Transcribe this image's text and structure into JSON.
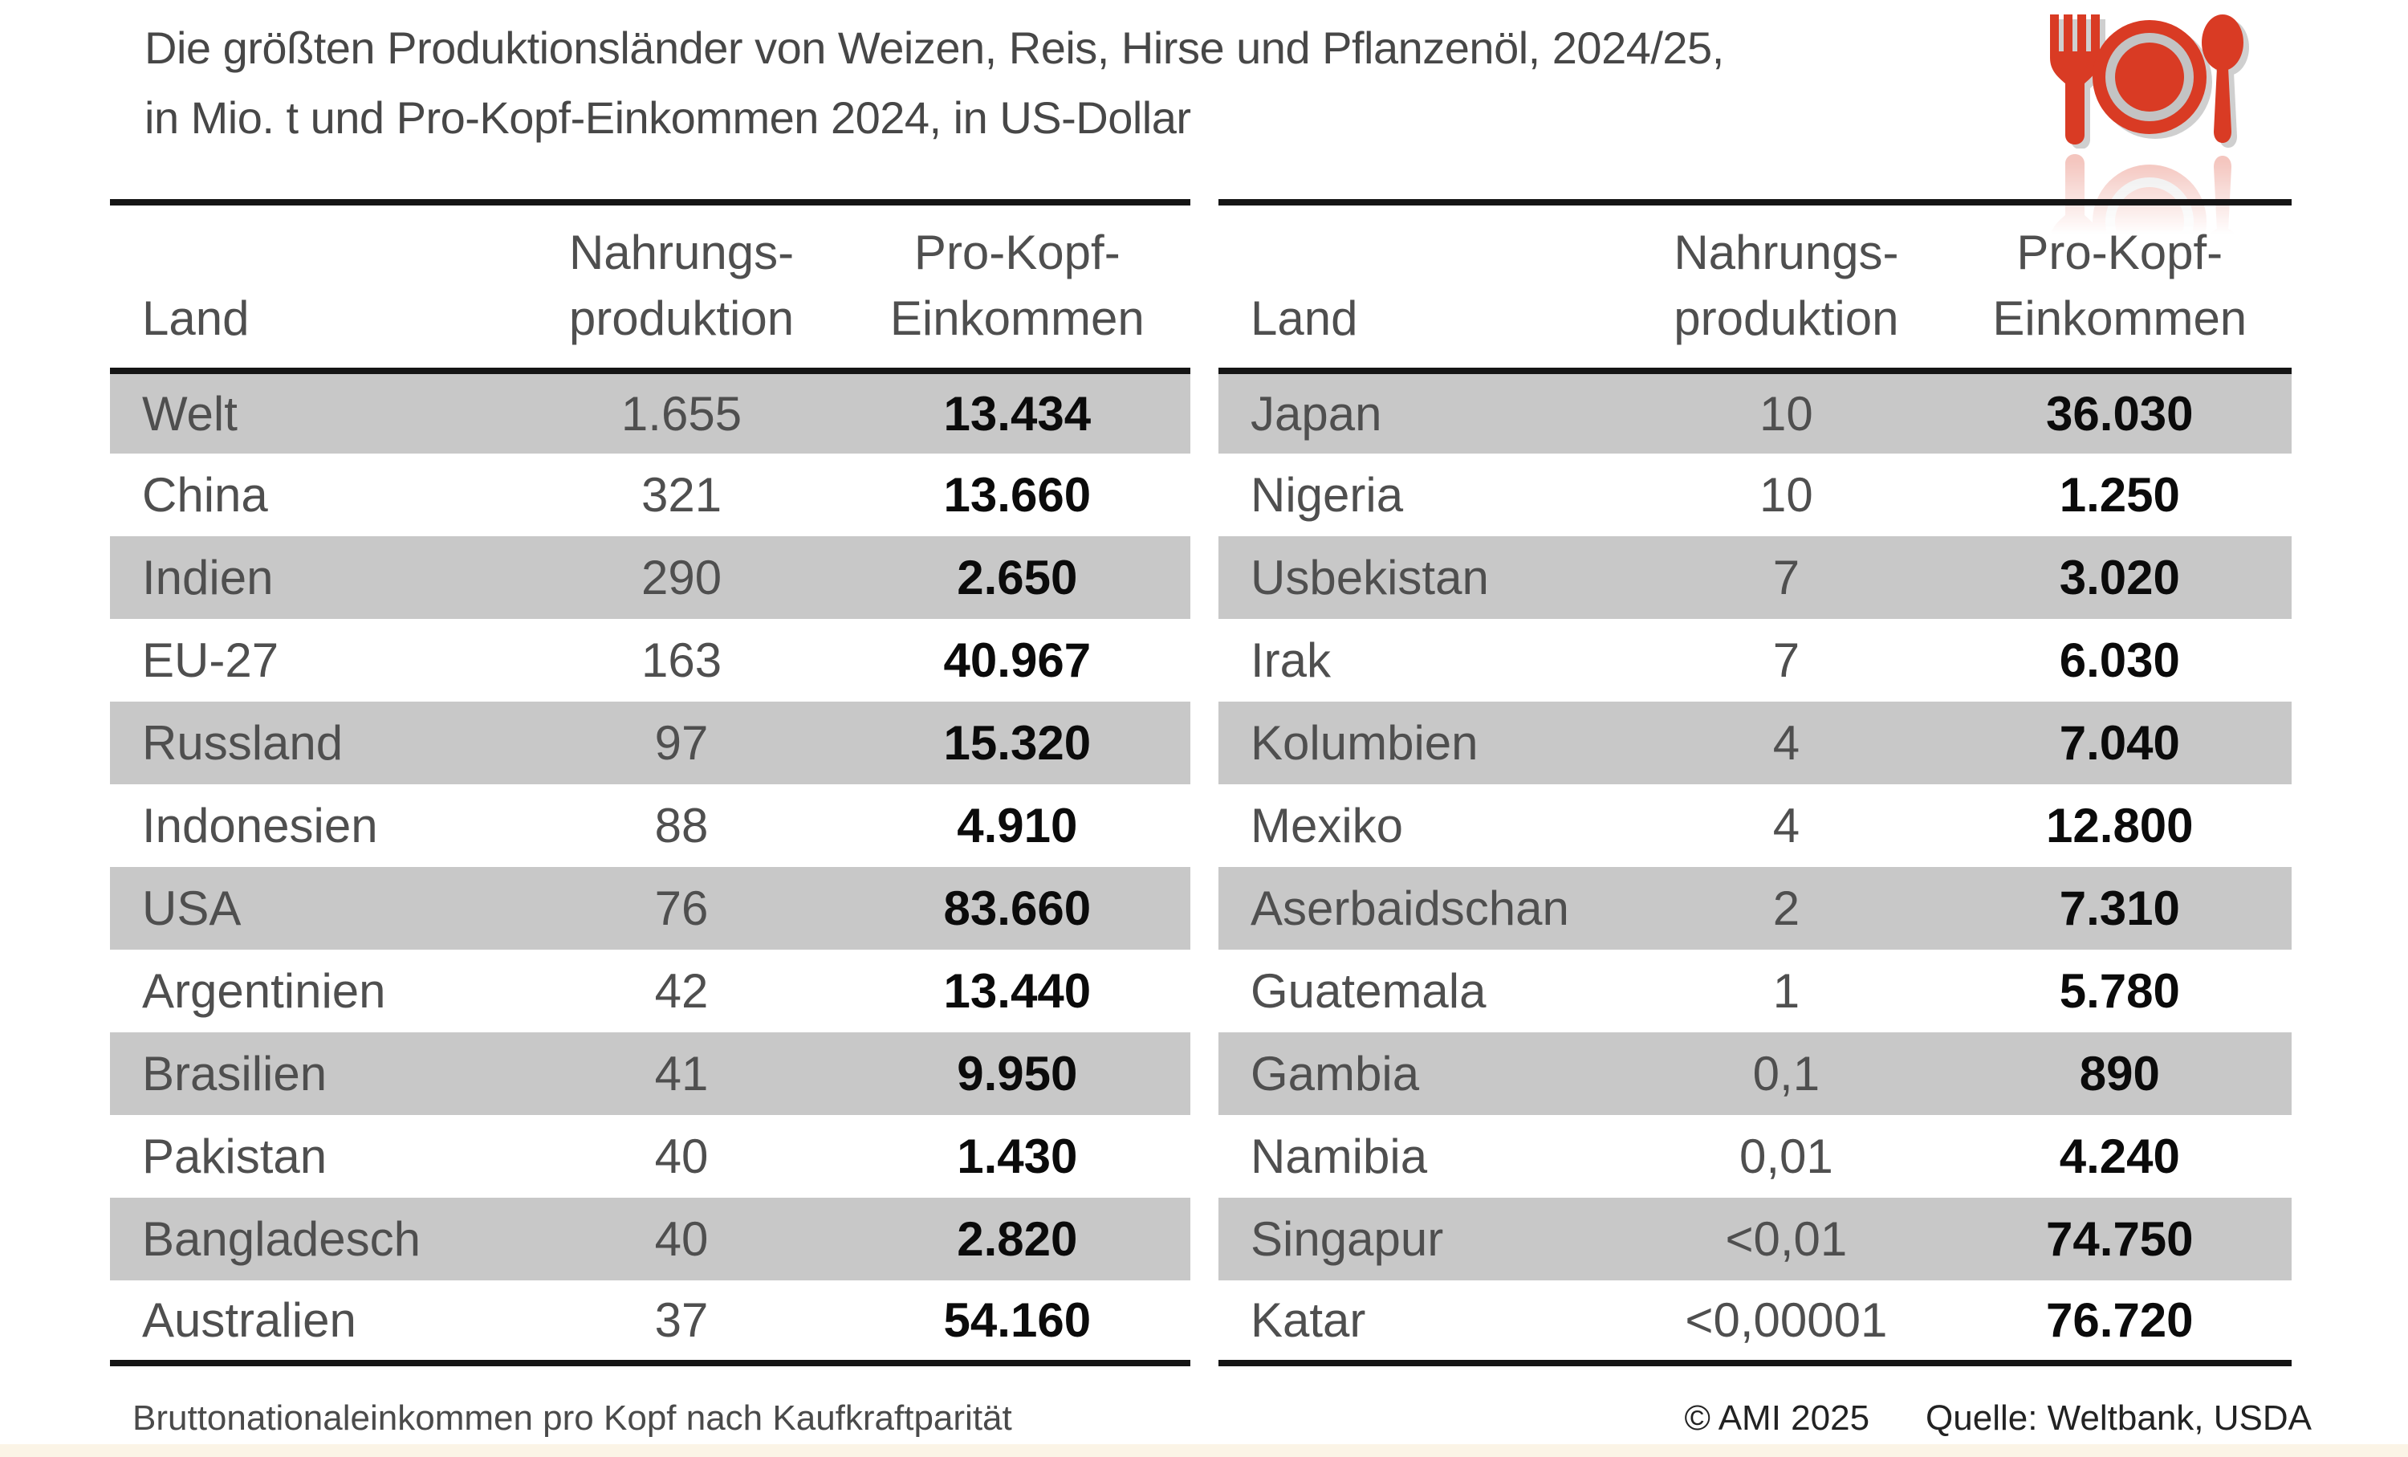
{
  "title": {
    "line1": "Die größten Produktionsländer von Weizen, Reis, Hirse und Pflanzenöl, 2024/25,",
    "line2": "in Mio. t und Pro-Kopf-Einkommen 2024, in US-Dollar"
  },
  "icon": {
    "name": "fork-plate-spoon",
    "color": "#d93b24",
    "shadow_color": "#a9a9a9",
    "ring_color": "#c3c3c3"
  },
  "chart_data": {
    "type": "table",
    "title": "Die größten Produktionsländer von Weizen, Reis, Hirse und Pflanzenöl, 2024/25, in Mio. t und Pro-Kopf-Einkommen 2024, in US-Dollar",
    "tables": [
      {
        "headers": {
          "country": "Land",
          "production": [
            "Nahrungs-",
            "produktion"
          ],
          "income": [
            "Pro-Kopf-",
            "Einkommen"
          ]
        },
        "rows": [
          {
            "country": "Welt",
            "production": "1.655",
            "income": "13.434"
          },
          {
            "country": "China",
            "production": "321",
            "income": "13.660"
          },
          {
            "country": "Indien",
            "production": "290",
            "income": "2.650"
          },
          {
            "country": "EU-27",
            "production": "163",
            "income": "40.967"
          },
          {
            "country": "Russland",
            "production": "97",
            "income": "15.320"
          },
          {
            "country": "Indonesien",
            "production": "88",
            "income": "4.910"
          },
          {
            "country": "USA",
            "production": "76",
            "income": "83.660"
          },
          {
            "country": "Argentinien",
            "production": "42",
            "income": "13.440"
          },
          {
            "country": "Brasilien",
            "production": "41",
            "income": "9.950"
          },
          {
            "country": "Pakistan",
            "production": "40",
            "income": "1.430"
          },
          {
            "country": "Bangladesch",
            "production": "40",
            "income": "2.820"
          },
          {
            "country": "Australien",
            "production": "37",
            "income": "54.160"
          }
        ]
      },
      {
        "headers": {
          "country": "Land",
          "production": [
            "Nahrungs-",
            "produktion"
          ],
          "income": [
            "Pro-Kopf-",
            "Einkommen"
          ]
        },
        "rows": [
          {
            "country": "Japan",
            "production": "10",
            "income": "36.030"
          },
          {
            "country": "Nigeria",
            "production": "10",
            "income": "1.250"
          },
          {
            "country": "Usbekistan",
            "production": "7",
            "income": "3.020"
          },
          {
            "country": "Irak",
            "production": "7",
            "income": "6.030"
          },
          {
            "country": "Kolumbien",
            "production": "4",
            "income": "7.040"
          },
          {
            "country": "Mexiko",
            "production": "4",
            "income": "12.800"
          },
          {
            "country": "Aserbaidschan",
            "production": "2",
            "income": "7.310"
          },
          {
            "country": "Guatemala",
            "production": "1",
            "income": "5.780"
          },
          {
            "country": "Gambia",
            "production": "0,1",
            "income": "890"
          },
          {
            "country": "Namibia",
            "production": "0,01",
            "income": "4.240"
          },
          {
            "country": "Singapur",
            "production": "<0,01",
            "income": "74.750"
          },
          {
            "country": "Katar",
            "production": "<0,00001",
            "income": "76.720"
          }
        ]
      }
    ],
    "layout": {
      "striped_rows": "odd rows gray #c8c8c8",
      "income_column_style": "bold black",
      "legend_position": "none"
    }
  },
  "footer": {
    "note": "Bruttonationaleinkommen pro Kopf nach Kaufkraftparität",
    "copyright": "© AMI 2025",
    "source": "Quelle: Weltbank, USDA"
  },
  "colors": {
    "stripe": "#c8c8c8",
    "border": "#151515",
    "text_gray": "#4f4f4f",
    "text_black": "#0b0b0b",
    "accent_red": "#d93b24",
    "bottom_strip": "#fbf4e6"
  }
}
